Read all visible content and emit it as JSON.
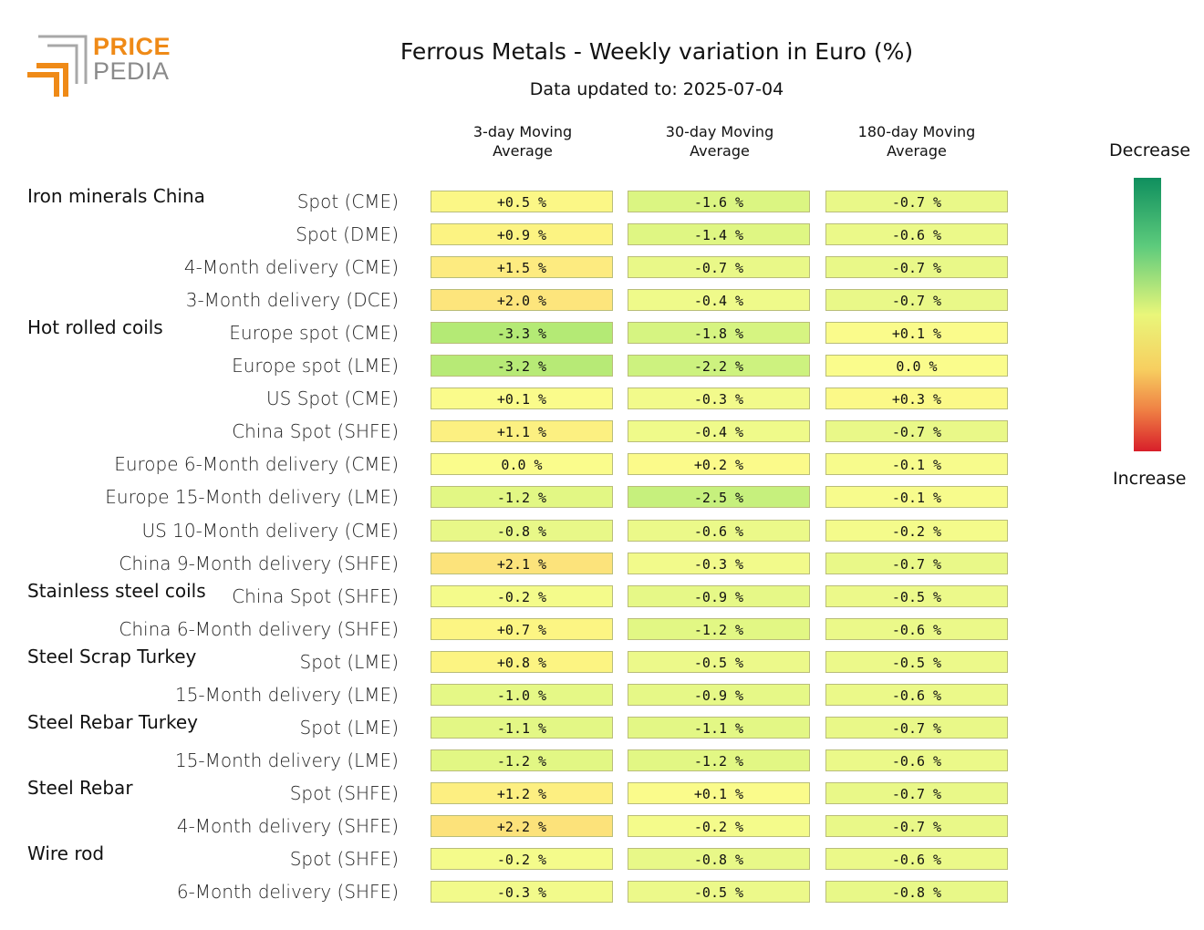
{
  "logo": {
    "line1": "PRICE",
    "line2": "PEDIA"
  },
  "title": "Ferrous Metals - Weekly variation in Euro (%)",
  "subtitle": "Data updated to: 2025-07-04",
  "legend": {
    "top": "Decrease",
    "bottom": "Increase"
  },
  "chart_data": {
    "type": "heatmap",
    "title": "Ferrous Metals - Weekly variation in Euro (%)",
    "subtitle": "Data updated to: 2025-07-04",
    "columns": [
      "3-day Moving\nAverage",
      "30-day Moving\nAverage",
      "180-day Moving\nAverage"
    ],
    "colorbar": {
      "top": "Decrease",
      "bottom": "Increase"
    },
    "groups": [
      {
        "name": "Iron minerals China",
        "rows": [
          {
            "label": "Spot (CME)",
            "values": [
              "+0.5 %",
              "-1.6 %",
              "-0.7 %"
            ]
          },
          {
            "label": "Spot (DME)",
            "values": [
              "+0.9 %",
              "-1.4 %",
              "-0.6 %"
            ]
          },
          {
            "label": "4-Month delivery (CME)",
            "values": [
              "+1.5 %",
              "-0.7 %",
              "-0.7 %"
            ]
          },
          {
            "label": "3-Month delivery (DCE)",
            "values": [
              "+2.0 %",
              "-0.4 %",
              "-0.7 %"
            ]
          }
        ]
      },
      {
        "name": "Hot rolled coils",
        "rows": [
          {
            "label": "Europe spot (CME)",
            "values": [
              "-3.3 %",
              "-1.8 %",
              "+0.1 %"
            ]
          },
          {
            "label": "Europe spot (LME)",
            "values": [
              "-3.2 %",
              "-2.2 %",
              "0.0 %"
            ]
          },
          {
            "label": "US Spot (CME)",
            "values": [
              "+0.1 %",
              "-0.3 %",
              "+0.3 %"
            ]
          },
          {
            "label": "China Spot (SHFE)",
            "values": [
              "+1.1 %",
              "-0.4 %",
              "-0.7 %"
            ]
          },
          {
            "label": "Europe 6-Month delivery (CME)",
            "values": [
              "0.0 %",
              "+0.2 %",
              "-0.1 %"
            ]
          },
          {
            "label": "Europe 15-Month delivery (LME)",
            "values": [
              "-1.2 %",
              "-2.5 %",
              "-0.1 %"
            ]
          },
          {
            "label": "US 10-Month delivery (CME)",
            "values": [
              "-0.8 %",
              "-0.6 %",
              "-0.2 %"
            ]
          },
          {
            "label": "China 9-Month delivery (SHFE)",
            "values": [
              "+2.1 %",
              "-0.3 %",
              "-0.7 %"
            ]
          }
        ]
      },
      {
        "name": "Stainless steel coils",
        "rows": [
          {
            "label": "China Spot (SHFE)",
            "values": [
              "-0.2 %",
              "-0.9 %",
              "-0.5 %"
            ]
          },
          {
            "label": "China 6-Month delivery (SHFE)",
            "values": [
              "+0.7 %",
              "-1.2 %",
              "-0.6 %"
            ]
          }
        ]
      },
      {
        "name": "Steel Scrap Turkey",
        "rows": [
          {
            "label": "Spot (LME)",
            "values": [
              "+0.8 %",
              "-0.5 %",
              "-0.5 %"
            ]
          },
          {
            "label": "15-Month delivery (LME)",
            "values": [
              "-1.0 %",
              "-0.9 %",
              "-0.6 %"
            ]
          }
        ]
      },
      {
        "name": "Steel Rebar Turkey",
        "rows": [
          {
            "label": "Spot (LME)",
            "values": [
              "-1.1 %",
              "-1.1 %",
              "-0.7 %"
            ]
          },
          {
            "label": "15-Month delivery (LME)",
            "values": [
              "-1.2 %",
              "-1.2 %",
              "-0.6 %"
            ]
          }
        ]
      },
      {
        "name": "Steel Rebar",
        "rows": [
          {
            "label": "Spot (SHFE)",
            "values": [
              "+1.2 %",
              "+0.1 %",
              "-0.7 %"
            ]
          },
          {
            "label": "4-Month delivery (SHFE)",
            "values": [
              "+2.2 %",
              "-0.2 %",
              "-0.7 %"
            ]
          }
        ]
      },
      {
        "name": "Wire rod",
        "rows": [
          {
            "label": "Spot (SHFE)",
            "values": [
              "-0.2 %",
              "-0.8 %",
              "-0.6 %"
            ]
          },
          {
            "label": "6-Month delivery (SHFE)",
            "values": [
              "-0.3 %",
              "-0.5 %",
              "-0.8 %"
            ]
          }
        ]
      }
    ]
  }
}
